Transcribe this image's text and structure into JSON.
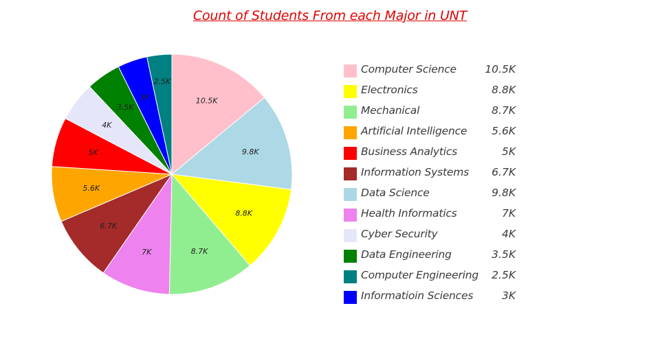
{
  "chart_data": {
    "type": "pie",
    "title": "Count of Students From each Major in UNT",
    "title_color": "#e00000",
    "legend_placement": "right",
    "slices": [
      {
        "label": "Computer Science",
        "value": 10.5,
        "display": "10.5K",
        "color": "#ffc0cb"
      },
      {
        "label": "Data Science",
        "value": 9.8,
        "display": "9.8K",
        "color": "#add8e6"
      },
      {
        "label": "Electronics",
        "value": 8.8,
        "display": "8.8K",
        "color": "#ffff00"
      },
      {
        "label": "Mechanical",
        "value": 8.7,
        "display": "8.7K",
        "color": "#90ee90"
      },
      {
        "label": "Health Informatics",
        "value": 7,
        "display": "7K",
        "color": "#ee82ee"
      },
      {
        "label": "Information Systems",
        "value": 6.7,
        "display": "6.7K",
        "color": "#a52a2a"
      },
      {
        "label": "Artificial Intelligence",
        "value": 5.6,
        "display": "5.6K",
        "color": "#ffa500"
      },
      {
        "label": "Business Analytics",
        "value": 5,
        "display": "5K",
        "color": "#ff0000"
      },
      {
        "label": "Cyber Security",
        "value": 4,
        "display": "4K",
        "color": "#e6e6fa"
      },
      {
        "label": "Data Engineering",
        "value": 3.5,
        "display": "3.5K",
        "color": "#008000"
      },
      {
        "label": "Informatioin Sciences",
        "value": 3,
        "display": "3K",
        "color": "#0000ff"
      },
      {
        "label": "Computer Engineering",
        "value": 2.5,
        "display": "2.5K",
        "color": "#008080"
      }
    ],
    "legend": [
      {
        "label": "Computer Science",
        "value": "10.5K",
        "color": "#ffc0cb"
      },
      {
        "label": "Electronics",
        "value": "8.8K",
        "color": "#ffff00"
      },
      {
        "label": "Mechanical",
        "value": "8.7K",
        "color": "#90ee90"
      },
      {
        "label": "Artificial Intelligence",
        "value": "5.6K",
        "color": "#ffa500"
      },
      {
        "label": "Business Analytics",
        "value": "5K",
        "color": "#ff0000"
      },
      {
        "label": "Information Systems",
        "value": "6.7K",
        "color": "#a52a2a"
      },
      {
        "label": "Data Science",
        "value": "9.8K",
        "color": "#add8e6"
      },
      {
        "label": "Health Informatics",
        "value": "7K",
        "color": "#ee82ee"
      },
      {
        "label": "Cyber Security",
        "value": "4K",
        "color": "#e6e6fa"
      },
      {
        "label": "Data Engineering",
        "value": "3.5K",
        "color": "#008000"
      },
      {
        "label": "Computer Engineering",
        "value": "2.5K",
        "color": "#008080"
      },
      {
        "label": "Informatioin Sciences",
        "value": "3K",
        "color": "#0000ff"
      }
    ]
  }
}
